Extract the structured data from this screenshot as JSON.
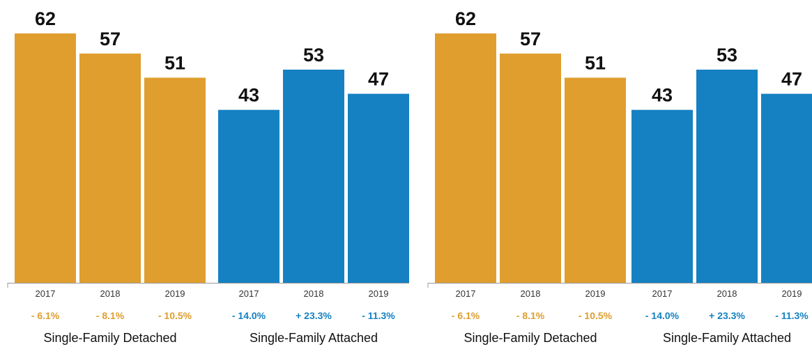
{
  "chart_data": [
    {
      "type": "bar",
      "ylim": [
        0,
        62
      ],
      "groups": [
        {
          "name": "Single-Family Detached",
          "color": "#E09E2F",
          "categories": [
            "2017",
            "2018",
            "2019"
          ],
          "values": [
            62,
            57,
            51
          ],
          "changes": [
            "- 6.1%",
            "- 8.1%",
            "- 10.5%"
          ]
        },
        {
          "name": "Single-Family Attached",
          "color": "#1581C2",
          "categories": [
            "2017",
            "2018",
            "2019"
          ],
          "values": [
            43,
            53,
            47
          ],
          "changes": [
            "- 14.0%",
            "+ 23.3%",
            "- 11.3%"
          ]
        }
      ]
    },
    {
      "type": "bar",
      "ylim": [
        0,
        62
      ],
      "groups": [
        {
          "name": "Single-Family Detached",
          "color": "#E09E2F",
          "categories": [
            "2017",
            "2018",
            "2019"
          ],
          "values": [
            62,
            57,
            51
          ],
          "changes": [
            "- 6.1%",
            "- 8.1%",
            "- 10.5%"
          ]
        },
        {
          "name": "Single-Family Attached",
          "color": "#1581C2",
          "categories": [
            "2017",
            "2018",
            "2019"
          ],
          "values": [
            43,
            53,
            47
          ],
          "changes": [
            "- 14.0%",
            "+ 23.3%",
            "- 11.3%"
          ]
        }
      ]
    }
  ]
}
